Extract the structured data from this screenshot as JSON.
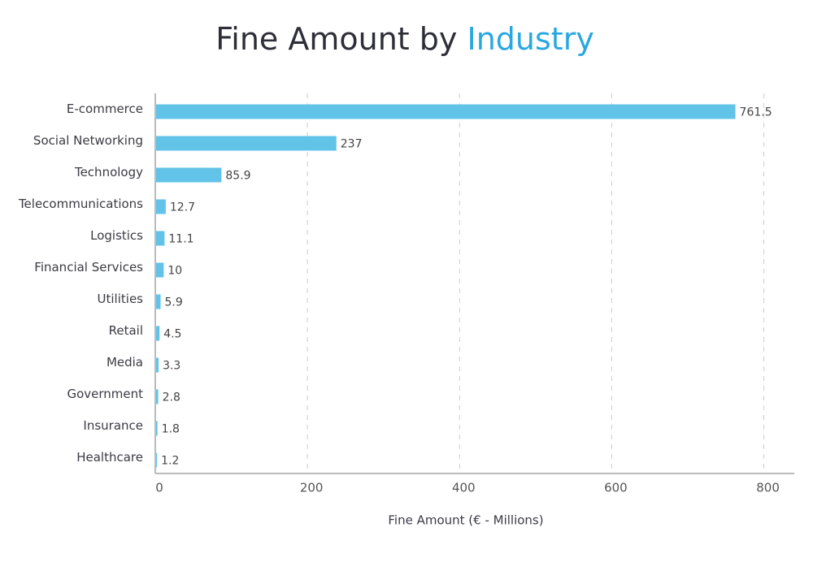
{
  "chart_data": {
    "type": "bar",
    "orientation": "horizontal",
    "title": {
      "text": "Fine Amount by",
      "highlight": "Industry",
      "highlight_color": "#29a8e0"
    },
    "x_label": "Fine Amount (€ - Millions)",
    "categories": [
      "E-commerce",
      "Social Networking",
      "Technology",
      "Telecommunications",
      "Logistics",
      "Financial Services",
      "Utilities",
      "Retail",
      "Media",
      "Government",
      "Insurance",
      "Healthcare"
    ],
    "values": [
      761.5,
      237,
      85.9,
      12.7,
      11.1,
      10,
      5.9,
      4.5,
      3.3,
      2.8,
      1.8,
      1.2
    ],
    "color": "#62c3e8",
    "xlim": [
      0,
      840
    ],
    "xticks": [
      0,
      200,
      400,
      600,
      800
    ],
    "grid": true
  }
}
